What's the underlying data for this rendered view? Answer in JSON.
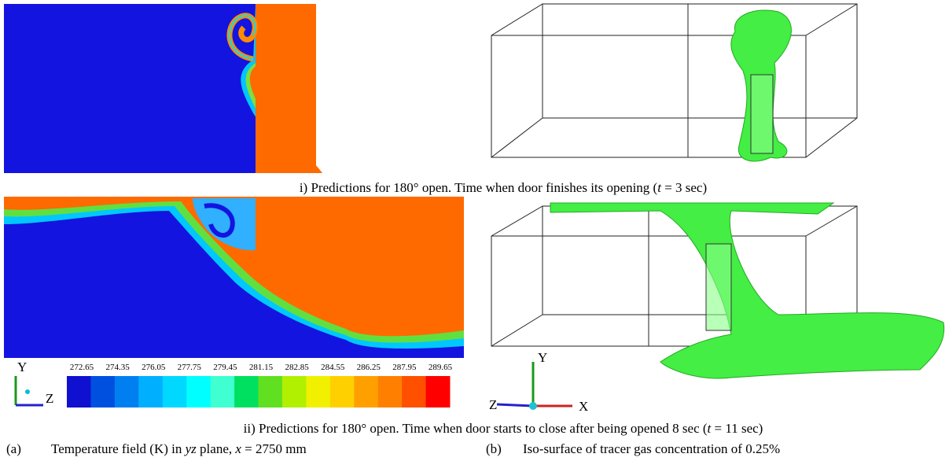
{
  "figure": {
    "row_1": {
      "caption": [
        "i)  Predictions for 180° open. Time when door finishes its opening (",
        "t",
        " = 3 sec)"
      ]
    },
    "row_2": {
      "caption": [
        "ii)  Predictions for 180° open. Time when door starts to close after being opened 8 sec (",
        "t",
        " = 11 sec)"
      ]
    },
    "colorbar": {
      "labels": [
        "272.65",
        "274.35",
        "276.05",
        "277.75",
        "279.45",
        "281.15",
        "282.85",
        "284.55",
        "286.25",
        "287.95",
        "289.65"
      ]
    },
    "axes_left": {
      "y": "Y",
      "z": "Z"
    },
    "axes_right": {
      "y": "Y",
      "z": "Z",
      "x": "X"
    },
    "panel_a": {
      "caption": [
        "(a)",
        "Temperature field (K) in ",
        "yz",
        " plane, ",
        "x",
        " = 2750 mm"
      ]
    },
    "panel_b": {
      "caption": [
        "(b)",
        "Iso-surface of tracer gas concentration of 0.25%"
      ]
    }
  }
}
